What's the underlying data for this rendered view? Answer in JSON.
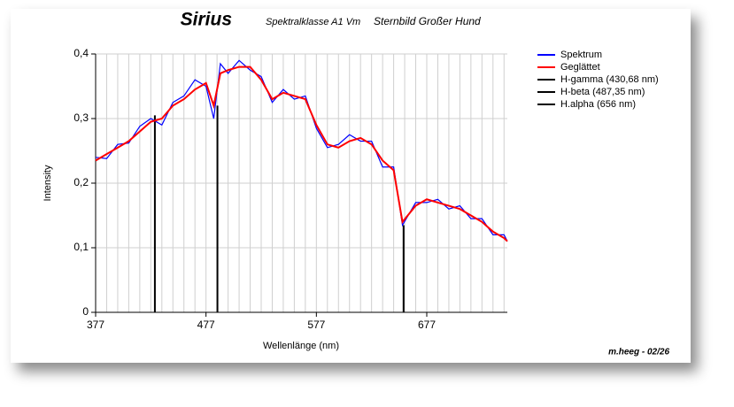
{
  "chart_data": {
    "type": "line",
    "title": "Sirius",
    "subtitle": "Spektralklasse A1 Vm",
    "subtitle2": "Sternbild Großer Hund",
    "x_label": "Wellenlänge (nm)",
    "y_label": "Intensity",
    "credit": "m.heeg - 02/26",
    "x": [
      377,
      387,
      397,
      407,
      417,
      427,
      437,
      447,
      457,
      467,
      477,
      484,
      490,
      497,
      507,
      517,
      527,
      537,
      547,
      557,
      567,
      577,
      587,
      597,
      607,
      617,
      627,
      637,
      647,
      655,
      667,
      677,
      687,
      697,
      707,
      717,
      727,
      737,
      747,
      750
    ],
    "series": [
      {
        "name": "Spektrum",
        "color": "#0000ff",
        "values": [
          0.24,
          0.238,
          0.26,
          0.262,
          0.288,
          0.3,
          0.29,
          0.325,
          0.335,
          0.36,
          0.35,
          0.3,
          0.385,
          0.37,
          0.39,
          0.375,
          0.365,
          0.325,
          0.345,
          0.33,
          0.335,
          0.285,
          0.255,
          0.26,
          0.275,
          0.265,
          0.265,
          0.225,
          0.225,
          0.135,
          0.17,
          0.17,
          0.175,
          0.16,
          0.165,
          0.145,
          0.145,
          0.12,
          0.12,
          0.11
        ]
      },
      {
        "name": "Geglättet",
        "color": "#ff0000",
        "values": [
          0.235,
          0.245,
          0.255,
          0.265,
          0.28,
          0.295,
          0.3,
          0.32,
          0.33,
          0.345,
          0.355,
          0.32,
          0.37,
          0.375,
          0.38,
          0.38,
          0.36,
          0.33,
          0.34,
          0.335,
          0.33,
          0.29,
          0.26,
          0.255,
          0.265,
          0.27,
          0.26,
          0.235,
          0.22,
          0.14,
          0.165,
          0.175,
          0.17,
          0.165,
          0.16,
          0.15,
          0.14,
          0.125,
          0.115,
          0.11
        ]
      }
    ],
    "lines": [
      {
        "name": "H-gamma (430,68 nm)",
        "color": "#000000",
        "x": 430.68,
        "top": 0.305
      },
      {
        "name": "H-beta (487,35 nm)",
        "color": "#000000",
        "x": 487.35,
        "top": 0.32
      },
      {
        "name": "H.alpha (656 nm)",
        "color": "#000000",
        "x": 656,
        "top": 0.135
      }
    ],
    "xlim": [
      377,
      750
    ],
    "xticks": [
      377,
      477,
      577,
      677
    ],
    "xgrid": [
      387,
      397,
      407,
      417,
      427,
      437,
      447,
      457,
      467,
      487,
      497,
      507,
      517,
      527,
      537,
      547,
      557,
      567,
      587,
      597,
      607,
      617,
      627,
      637,
      647,
      657,
      667,
      687,
      697,
      707,
      717,
      727,
      737,
      747
    ],
    "ylim": [
      0,
      0.4
    ],
    "yticks": [
      0,
      {
        "value": 0.1,
        "label": "0,1"
      },
      {
        "value": 0.2,
        "label": "0,2"
      },
      {
        "value": 0.3,
        "label": "0,3"
      },
      {
        "value": 0.4,
        "label": "0,4"
      }
    ],
    "grid": true
  }
}
